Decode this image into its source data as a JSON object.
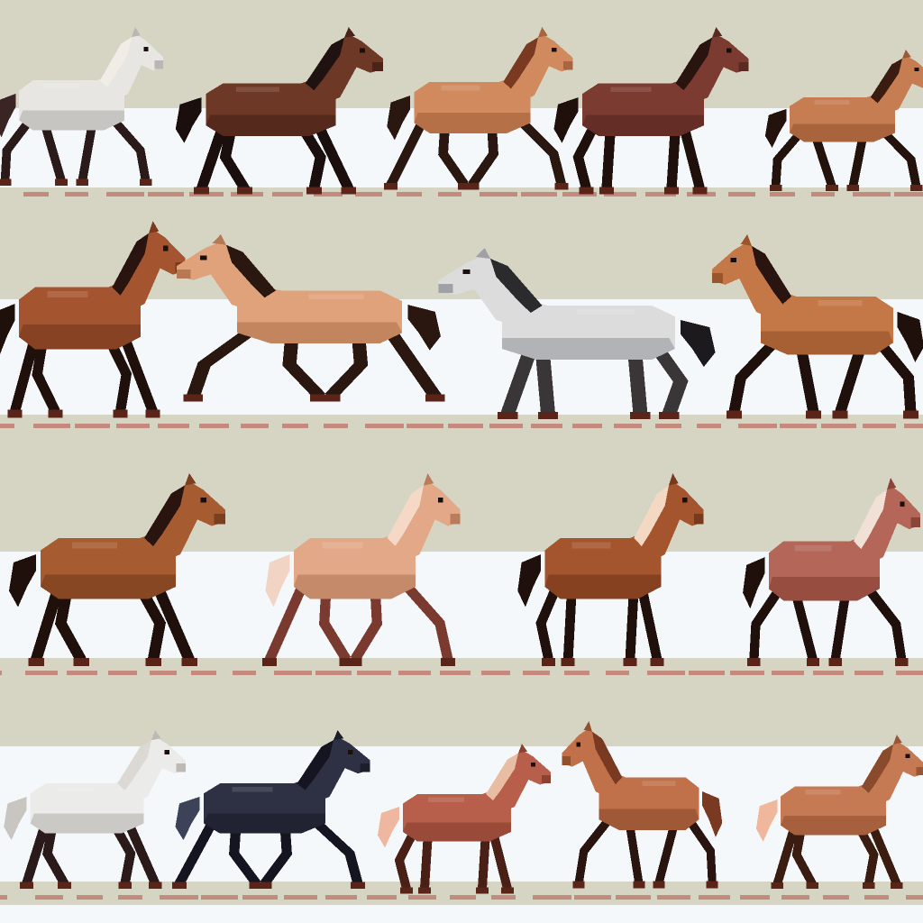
{
  "palette": {
    "background": "#d6d4c2",
    "band": "#f4f8fa",
    "ground": "#c58a7e",
    "hoof": "#5a2418"
  },
  "sprite_sheet": {
    "rows": [
      {
        "name": "row-1",
        "horses": [
          {
            "coat": "grey",
            "body": "#e7e6e3",
            "shade": "#b9b7b3",
            "mane": "#f1ece6",
            "legs": "#2a1b1a",
            "tail": "#3a2424",
            "facing": "right",
            "pose": 0
          },
          {
            "coat": "dark-bay",
            "body": "#6e3826",
            "shade": "#4a2418",
            "mane": "#1f1210",
            "legs": "#1b0f0d",
            "tail": "#1b0f0d",
            "facing": "right",
            "pose": 1
          },
          {
            "coat": "light-bay",
            "body": "#d08a5e",
            "shade": "#a9653f",
            "mane": "#7a3a22",
            "legs": "#2a1810",
            "tail": "#2a1810",
            "facing": "right",
            "pose": 2
          },
          {
            "coat": "brown",
            "body": "#7c3b30",
            "shade": "#5a2a22",
            "mane": "#2a1410",
            "legs": "#1f100c",
            "tail": "#1f100c",
            "facing": "right",
            "pose": 3
          },
          {
            "coat": "chestnut",
            "body": "#c77d52",
            "shade": "#9d5a36",
            "mane": "#3a1c10",
            "legs": "#24130c",
            "tail": "#24130c",
            "facing": "right",
            "pose": 0
          }
        ]
      },
      {
        "name": "row-2",
        "horses": [
          {
            "coat": "bay",
            "body": "#a4552f",
            "shade": "#7a3a1f",
            "mane": "#2a1410",
            "legs": "#1f100c",
            "tail": "#1f100c",
            "facing": "right",
            "pose": 1
          },
          {
            "coat": "buckskin",
            "body": "#e0a27b",
            "shade": "#b67953",
            "mane": "#2a1810",
            "legs": "#2a1810",
            "tail": "#2a1810",
            "facing": "left",
            "pose": 2
          },
          {
            "coat": "grey",
            "body": "#dcdcdc",
            "shade": "#9fa1a6",
            "mane": "#2b2a2c",
            "legs": "#3a3638",
            "tail": "#1c1a1c",
            "facing": "left",
            "pose": 3
          },
          {
            "coat": "chestnut",
            "body": "#c57847",
            "shade": "#9a552c",
            "mane": "#2a1410",
            "legs": "#1f100c",
            "tail": "#1f100c",
            "facing": "left",
            "pose": 0
          }
        ]
      },
      {
        "name": "row-3",
        "horses": [
          {
            "coat": "bay",
            "body": "#a65b30",
            "shade": "#7a3f1e",
            "mane": "#2a1410",
            "legs": "#1f100c",
            "tail": "#1f100c",
            "facing": "right",
            "pose": 1
          },
          {
            "coat": "palomino",
            "body": "#e2a888",
            "shade": "#b97d5e",
            "mane": "#f5d9c6",
            "legs": "#7a3a30",
            "tail": "#f2d4c4",
            "facing": "right",
            "pose": 2
          },
          {
            "coat": "bay",
            "body": "#a5552e",
            "shade": "#79391c",
            "mane": "#f3d9c3",
            "legs": "#1f100c",
            "tail": "#1f100c",
            "facing": "right",
            "pose": 3
          },
          {
            "coat": "red-roan",
            "body": "#b46658",
            "shade": "#8a4538",
            "mane": "#f0e0d6",
            "legs": "#1f100c",
            "tail": "#1f100c",
            "facing": "right",
            "pose": 0
          }
        ]
      },
      {
        "name": "row-4",
        "horses": [
          {
            "coat": "grey",
            "body": "#ebebea",
            "shade": "#bdbab5",
            "mane": "#dcd8d3",
            "legs": "#2a1b1a",
            "tail": "#c9c6c2",
            "facing": "right",
            "pose": 1
          },
          {
            "coat": "black",
            "body": "#2e3144",
            "shade": "#1c1e2c",
            "mane": "#141520",
            "legs": "#141520",
            "tail": "#3c4258",
            "facing": "right",
            "pose": 2
          },
          {
            "coat": "chestnut",
            "body": "#b75f4a",
            "shade": "#8c4230",
            "mane": "#e9bca4",
            "legs": "#4a1f16",
            "tail": "#f0b7a0",
            "facing": "right",
            "pose": 3
          },
          {
            "coat": "sorrel",
            "body": "#c0714a",
            "shade": "#93502f",
            "mane": "#7a3a22",
            "legs": "#2a1410",
            "tail": "#7a3a22",
            "facing": "left",
            "pose": 0
          },
          {
            "coat": "sorrel",
            "body": "#c57a54",
            "shade": "#985634",
            "mane": "#8a4a2c",
            "legs": "#3a1c10",
            "tail": "#f0b79c",
            "facing": "right",
            "pose": 1
          }
        ]
      }
    ]
  }
}
